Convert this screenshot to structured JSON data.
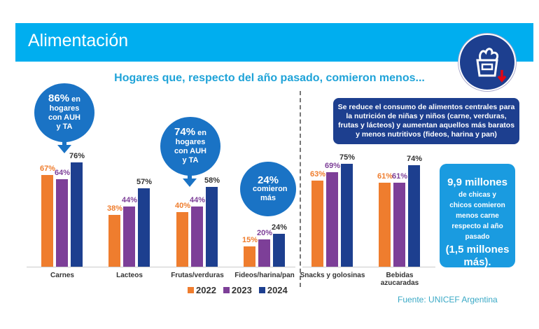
{
  "header": {
    "title": "Alimentación",
    "icon": "grocery-bag-down-icon"
  },
  "chart_data": {
    "type": "bar",
    "title": "Hogares que, respecto del año pasado, comieron menos...",
    "categories": [
      "Carnes",
      "Lacteos",
      "Frutas/verduras",
      "Fideos/harina/pan",
      "Snacks y golosinas",
      "Bebidas azucaradas"
    ],
    "series": [
      {
        "name": "2022",
        "color": "#ef7d2e",
        "values": [
          67,
          38,
          40,
          15,
          63,
          61
        ]
      },
      {
        "name": "2023",
        "color": "#7d3f98",
        "values": [
          64,
          44,
          44,
          20,
          69,
          61
        ]
      },
      {
        "name": "2024",
        "color": "#1d3f8f",
        "values": [
          76,
          57,
          58,
          24,
          75,
          74
        ]
      }
    ],
    "labels": [
      [
        "67%",
        "38%",
        "40%",
        "15%",
        "63%",
        "61%"
      ],
      [
        "64%",
        "44%",
        "44%",
        "20%",
        "69%",
        "61%"
      ],
      [
        "76%",
        "57%",
        "58%",
        "24%",
        "75%",
        "74%"
      ]
    ],
    "legend": "bottom",
    "ylim": [
      0,
      100
    ]
  },
  "bubbles": [
    {
      "big": "86%",
      "small": "en",
      "rest": "hogares con AUH y TA"
    },
    {
      "big": "74%",
      "small": "en",
      "rest": "hogares con AUH y TA"
    },
    {
      "big": "24%",
      "rest": "comieron más"
    }
  ],
  "note_box": "Se reduce el consumo de alimentos centrales para la nutrición de niñas y niños (carne, verduras, frutas y lácteos) y aumentan aquellos más baratos y menos nutritivos (fideos, harina y pan)",
  "highlight": {
    "big": "9,9 millones",
    "mid": "de chicas y chicos comieron menos carne respecto al año pasado",
    "end": "(1,5 millones más)."
  },
  "source": "Fuente: UNICEF Argentina"
}
